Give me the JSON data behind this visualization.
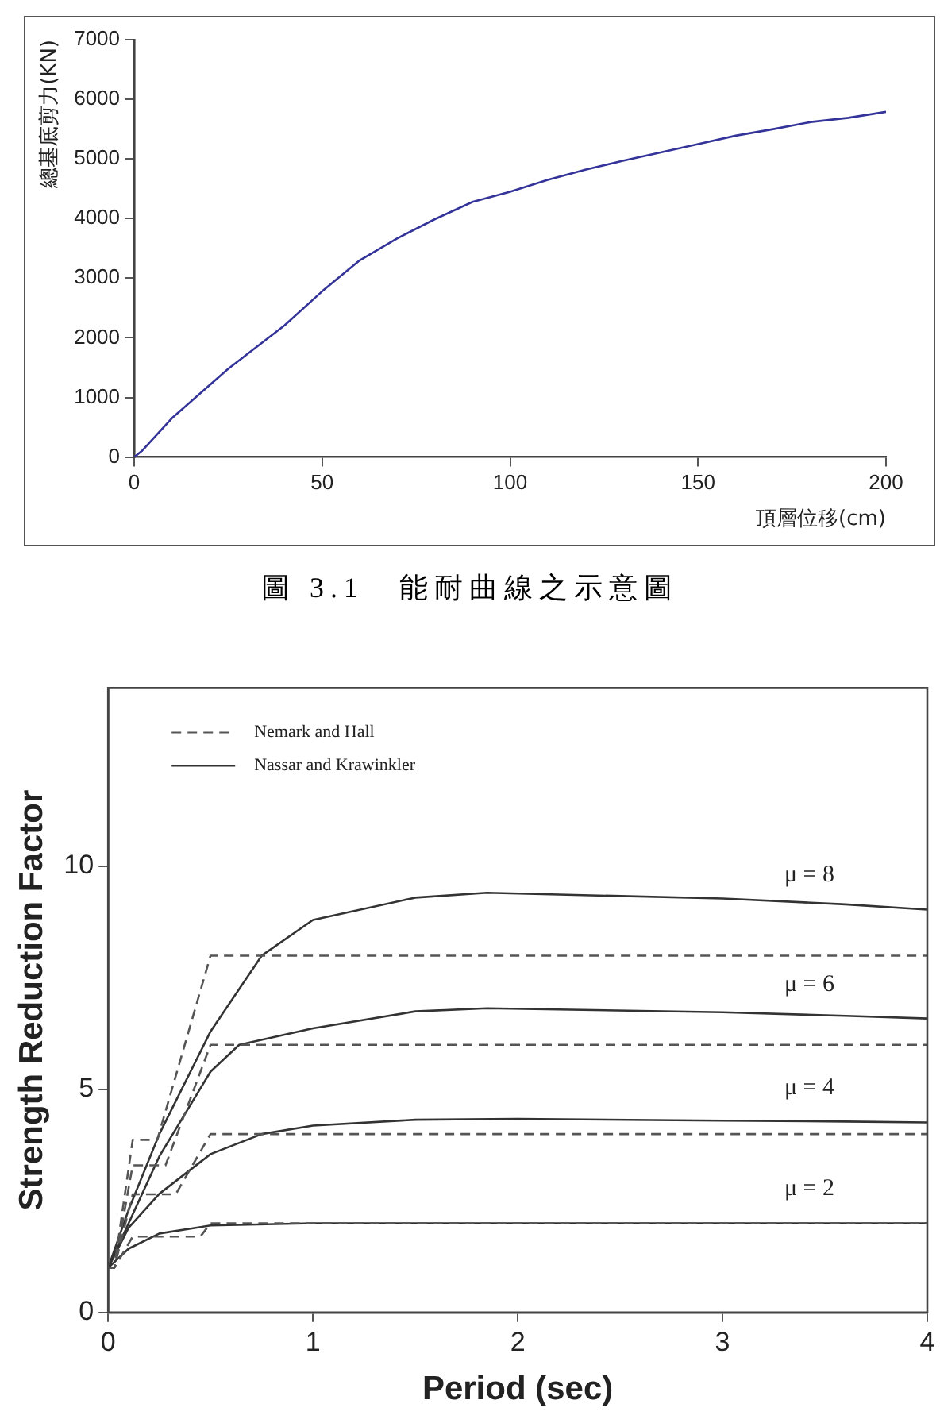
{
  "chart_data": [
    {
      "type": "line",
      "xlabel": "頂層位移(cm)",
      "ylabel": "總基底剪力(KN)",
      "annotations": [
        "圖 3.1　能耐曲線之示意圖"
      ],
      "x": [
        0,
        2,
        10,
        25,
        40,
        50,
        60,
        70,
        80,
        90,
        100,
        110,
        120,
        130,
        140,
        150,
        160,
        170,
        180,
        190,
        200
      ],
      "series": [
        {
          "color": "#333399",
          "values": [
            0,
            100,
            650,
            1480,
            2210,
            2780,
            3300,
            3670,
            3990,
            4280,
            4450,
            4650,
            4820,
            4970,
            5110,
            5250,
            5390,
            5500,
            5620,
            5690,
            5790
          ]
        }
      ],
      "xlim": [
        0,
        200
      ],
      "xticks": [
        0,
        50,
        100,
        150,
        200
      ],
      "ylim": [
        0,
        7000
      ],
      "yticks": [
        0,
        1000,
        2000,
        3000,
        4000,
        5000,
        6000,
        7000
      ],
      "grid": false,
      "marker": "none"
    },
    {
      "type": "line",
      "xlabel": "Period (sec)",
      "ylabel": "Strength Reduction Factor",
      "legend": "top left",
      "marker": "none",
      "xlim": [
        0,
        4
      ],
      "xticks": [
        0,
        1,
        2,
        3,
        4
      ],
      "ylim": [
        0,
        14
      ],
      "yticks": [
        0,
        5,
        10
      ],
      "grid": false,
      "series": [
        {
          "name": "Nemark and Hall",
          "color": "#555555",
          "line_style": "dashed",
          "x": [
            0,
            0.03,
            0.12,
            0.24,
            0.5,
            4
          ],
          "values": [
            1,
            1,
            3.87,
            3.87,
            8,
            8
          ]
        },
        {
          "color": "#555555",
          "line_style": "dashed",
          "x": [
            0,
            0.03,
            0.12,
            0.28,
            0.5,
            4
          ],
          "values": [
            1,
            1,
            3.3,
            3.3,
            6,
            6
          ]
        },
        {
          "color": "#555555",
          "line_style": "dashed",
          "x": [
            0,
            0.03,
            0.12,
            0.33,
            0.5,
            4
          ],
          "values": [
            1,
            1,
            2.65,
            2.65,
            4,
            4
          ]
        },
        {
          "color": "#555555",
          "line_style": "dashed",
          "x": [
            0,
            0.03,
            0.12,
            0.45,
            0.5,
            4
          ],
          "values": [
            1,
            1,
            1.7,
            1.7,
            2,
            2
          ]
        },
        {
          "name": "Nassar and Krawinkler",
          "color": "#333333",
          "line_style": "solid",
          "x": [
            0,
            0.1,
            0.25,
            0.5,
            0.75,
            1,
            1.5,
            1.85,
            3,
            3.6,
            4
          ],
          "values": [
            1,
            2.3,
            4,
            6.3,
            8,
            8.8,
            9.3,
            9.41,
            9.28,
            9.15,
            9.03
          ]
        },
        {
          "color": "#333333",
          "line_style": "solid",
          "x": [
            0,
            0.1,
            0.25,
            0.5,
            0.64,
            1,
            1.5,
            1.85,
            3,
            3.6,
            4
          ],
          "values": [
            1,
            2,
            3.5,
            5.4,
            6,
            6.37,
            6.75,
            6.82,
            6.73,
            6.65,
            6.59
          ]
        },
        {
          "color": "#333333",
          "line_style": "solid",
          "x": [
            0,
            0.1,
            0.25,
            0.5,
            0.75,
            1,
            1.5,
            2,
            3,
            3.6,
            4
          ],
          "values": [
            1,
            1.9,
            2.66,
            3.55,
            4,
            4.19,
            4.32,
            4.34,
            4.3,
            4.28,
            4.26
          ]
        },
        {
          "color": "#333333",
          "line_style": "solid",
          "x": [
            0,
            0.1,
            0.25,
            0.5,
            1,
            3.6,
            4
          ],
          "values": [
            1,
            1.43,
            1.77,
            1.95,
            2,
            2,
            2
          ]
        }
      ],
      "annotations": [
        "μ = 8",
        "μ = 6",
        "μ = 4",
        "μ = 2"
      ]
    }
  ]
}
